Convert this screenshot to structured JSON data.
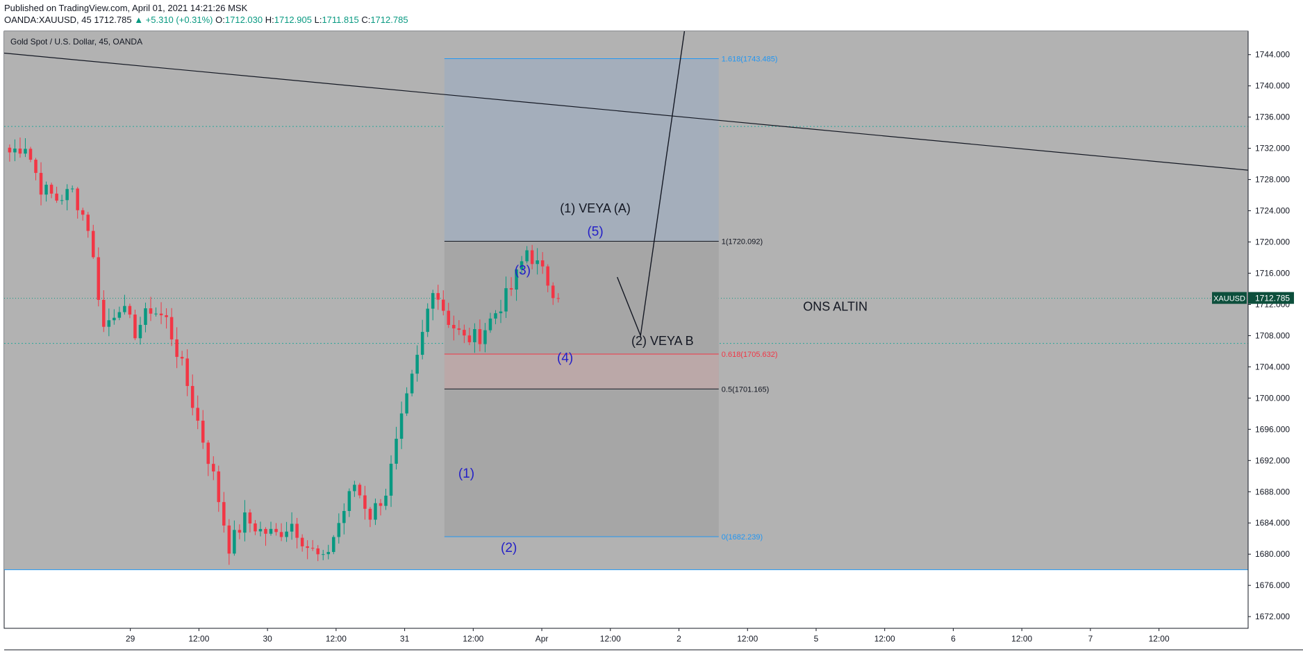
{
  "header": {
    "published": "Published on TradingView.com, April 01, 2021 14:21:26 MSK",
    "symbol": "OANDA:XAUUSD, 45",
    "last": "1712.785",
    "change": "▲ +5.310 (+0.31%)",
    "o_label": "O:",
    "o_value": "1712.030",
    "h_label": "H:",
    "h_value": "1712.905",
    "l_label": "L:",
    "l_value": "1711.815",
    "c_label": "C:",
    "c_value": "1712.785"
  },
  "colors": {
    "up": "#089981",
    "down": "#f23645",
    "wave_label": "#2420c8",
    "fib_blue": "#2196f3",
    "fib_red": "#f23645",
    "price_badge": "#0d4f3c"
  },
  "chart_data": {
    "type": "candlestick",
    "title": "Gold Spot / U.S. Dollar, 45, OANDA",
    "ylim": [
      1670.5,
      1747
    ],
    "y_ticks": [
      1672,
      1676,
      1680,
      1684,
      1688,
      1692,
      1696,
      1700,
      1704,
      1708,
      1712,
      1716,
      1720,
      1724,
      1728,
      1732,
      1736,
      1740,
      1744
    ],
    "y_tick_labels": [
      "1672.000",
      "1676.000",
      "1680.000",
      "1684.000",
      "1688.000",
      "1692.000",
      "1696.000",
      "1700.000",
      "1704.000",
      "1708.000",
      "1712.000",
      "1716.000",
      "1720.000",
      "1724.000",
      "1728.000",
      "1732.000",
      "1736.000",
      "1740.000",
      "1744.000"
    ],
    "x_range_days": [
      -0.92,
      8.15
    ],
    "x_ticks": [
      {
        "day": 0,
        "label": "29"
      },
      {
        "day": 0.5,
        "label": "12:00"
      },
      {
        "day": 1,
        "label": "30"
      },
      {
        "day": 1.5,
        "label": "12:00"
      },
      {
        "day": 2,
        "label": "31"
      },
      {
        "day": 2.5,
        "label": "12:00"
      },
      {
        "day": 3,
        "label": "Apr"
      },
      {
        "day": 3.5,
        "label": "12:00"
      },
      {
        "day": 4,
        "label": "2"
      },
      {
        "day": 4.5,
        "label": "12:00"
      },
      {
        "day": 5,
        "label": "5"
      },
      {
        "day": 5.5,
        "label": "12:00"
      },
      {
        "day": 6,
        "label": "6"
      },
      {
        "day": 6.5,
        "label": "12:00"
      },
      {
        "day": 7,
        "label": "7"
      },
      {
        "day": 7.5,
        "label": "12:00"
      }
    ],
    "key_closes": [
      1731.5,
      1732.5,
      1727,
      1725.5,
      1726.5,
      1722,
      1709,
      1712,
      1708.5,
      1711.5,
      1710,
      1704,
      1697,
      1690,
      1681,
      1684.5,
      1683,
      1682.5,
      1684,
      1681,
      1679,
      1684,
      1689,
      1685,
      1688,
      1697,
      1705,
      1714.5,
      1710,
      1707.5,
      1708,
      1711,
      1714,
      1719,
      1716,
      1712.785
    ],
    "current_price": {
      "value": 1712.785,
      "label": "XAUUSD",
      "value_label": "1712.785"
    },
    "horizontal_levels": [
      {
        "name": "support-line",
        "price": 1678,
        "color": "#2196f3"
      },
      {
        "name": "dotted-level-1735",
        "price": 1734.8,
        "color": "#26a69a"
      },
      {
        "name": "dotted-level-1707",
        "price": 1707,
        "color": "#26a69a"
      }
    ],
    "trendline": {
      "from": {
        "day": -0.92,
        "price": 1744.2
      },
      "to": {
        "day": 8.15,
        "price": 1729.2
      }
    },
    "fib": {
      "x_from_day": 2.29,
      "x_to_day": 4.29,
      "levels": [
        {
          "ratio": "1.618",
          "price": 1743.485,
          "label": "1.618(1743.485)",
          "color": "#2196f3"
        },
        {
          "ratio": "1",
          "price": 1720.092,
          "label": "1(1720.092)",
          "color": "#131722"
        },
        {
          "ratio": "0.618",
          "price": 1705.632,
          "label": "0.618(1705.632)",
          "color": "#f23645"
        },
        {
          "ratio": "0.5",
          "price": 1701.165,
          "label": "0.5(1701.165)",
          "color": "#131722"
        },
        {
          "ratio": "0",
          "price": 1682.239,
          "label": "0(1682.239)",
          "color": "#2196f3"
        }
      ]
    },
    "wave_labels": [
      {
        "text": "(1)",
        "day": 2.45,
        "price": 1689.8
      },
      {
        "text": "(2)",
        "day": 2.76,
        "price": 1680.3
      },
      {
        "text": "(3)",
        "day": 2.86,
        "price": 1715.8
      },
      {
        "text": "(4)",
        "day": 3.17,
        "price": 1704.6
      },
      {
        "text": "(5)",
        "day": 3.39,
        "price": 1720.8
      }
    ],
    "annotations": [
      {
        "text": "(1) VEYA (A)",
        "day": 3.39,
        "price": 1723.8
      },
      {
        "text": "(2) VEYA B",
        "day": 3.88,
        "price": 1706.8
      },
      {
        "text": "ONS ALTIN",
        "day": 5.14,
        "price": 1711.2
      }
    ],
    "projection_path": [
      {
        "day": 3.55,
        "price": 1715.5
      },
      {
        "day": 3.72,
        "price": 1708
      },
      {
        "day": 4.04,
        "price": 1747
      }
    ]
  }
}
